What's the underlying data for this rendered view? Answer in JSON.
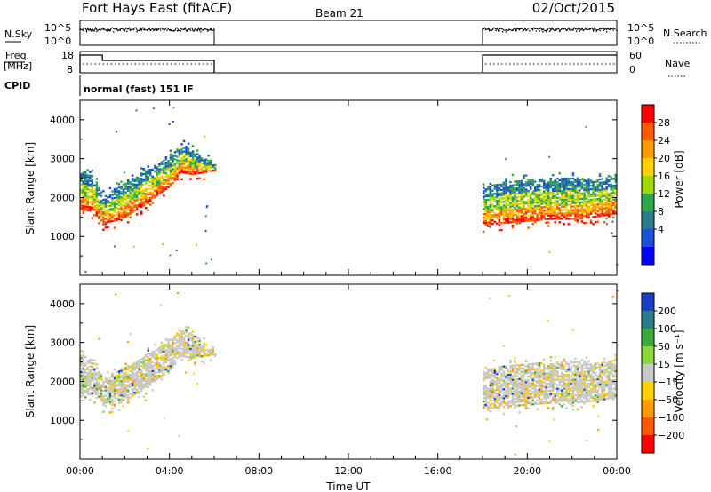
{
  "header": {
    "station": "Fort Hays East (fitACF)",
    "beam": "Beam 21",
    "date": "02/Oct/2015"
  },
  "strips": {
    "nsky_label": "N.Sky",
    "nsearch_label": "N.Search",
    "noise_ticks_left": [
      "10^5",
      "10^0"
    ],
    "noise_ticks_right": [
      "10^5",
      "10^0"
    ],
    "freq_label_line1": "Freq.",
    "freq_label_line2": "[MHz]",
    "freq_ticks": [
      "18",
      "8"
    ],
    "nave_label": "Nave",
    "nave_ticks": [
      "60",
      "0"
    ],
    "cpid_label": "CPID",
    "cpid_text": "normal (fast) 151 IF"
  },
  "chart_data": [
    {
      "type": "heatmap",
      "name": "power",
      "ylabel": "Slant Range [km]",
      "ylim": [
        0,
        4500
      ],
      "yticks": [
        1000,
        2000,
        3000,
        4000
      ],
      "xlim": [
        0,
        24
      ],
      "data_intervals_hours": [
        [
          0,
          6
        ],
        [
          18,
          24
        ]
      ],
      "colorbar": {
        "label": "Power [dB]",
        "ticks": [
          "28",
          "24",
          "20",
          "16",
          "12",
          "8",
          "4"
        ],
        "colors": [
          "#ff0000",
          "#ff5a00",
          "#ff9a00",
          "#ffd000",
          "#a0d800",
          "#2ea84a",
          "#2a7a8a",
          "#1a4fd6",
          "#0000ff"
        ]
      },
      "echo_bands": [
        {
          "hours": [
            0.0,
            0.5,
            1.0,
            1.5,
            2.0,
            2.5,
            3.0,
            3.5,
            4.0,
            4.5,
            5.0,
            5.5,
            6.0
          ],
          "lower_km": [
            1700,
            1650,
            1350,
            1400,
            1500,
            1700,
            1850,
            2100,
            2300,
            2650,
            2600,
            2650,
            2700
          ],
          "upper_km": [
            2700,
            2600,
            2050,
            2250,
            2400,
            2550,
            2750,
            2900,
            3100,
            3400,
            3250,
            3000,
            2900
          ]
        },
        {
          "hours": [
            18.0,
            19.0,
            20.0,
            21.0,
            22.0,
            23.0,
            24.0
          ],
          "lower_km": [
            1300,
            1350,
            1400,
            1450,
            1450,
            1500,
            1600
          ],
          "upper_km": [
            2300,
            2450,
            2500,
            2500,
            2550,
            2500,
            2600
          ]
        }
      ]
    },
    {
      "type": "heatmap",
      "name": "velocity",
      "ylabel": "Slant Range [km]",
      "ylim": [
        0,
        4500
      ],
      "yticks": [
        1000,
        2000,
        3000,
        4000
      ],
      "xlim": [
        0,
        24
      ],
      "xticks": [
        "00:00",
        "04:00",
        "08:00",
        "12:00",
        "16:00",
        "20:00",
        "00:00"
      ],
      "xlabel": "Time UT",
      "data_intervals_hours": [
        [
          0,
          6
        ],
        [
          18,
          24
        ]
      ],
      "colorbar": {
        "label": "Velocity [m s⁻¹]",
        "ticks": [
          "200",
          "100",
          "50",
          "15",
          "−15",
          "−50",
          "−100",
          "−200"
        ],
        "colors": [
          "#1a3fc4",
          "#2c7a8a",
          "#3ea83e",
          "#8ed640",
          "#c8c8c8",
          "#ffd000",
          "#ff9a00",
          "#ff5a00",
          "#ff0000"
        ]
      }
    }
  ]
}
